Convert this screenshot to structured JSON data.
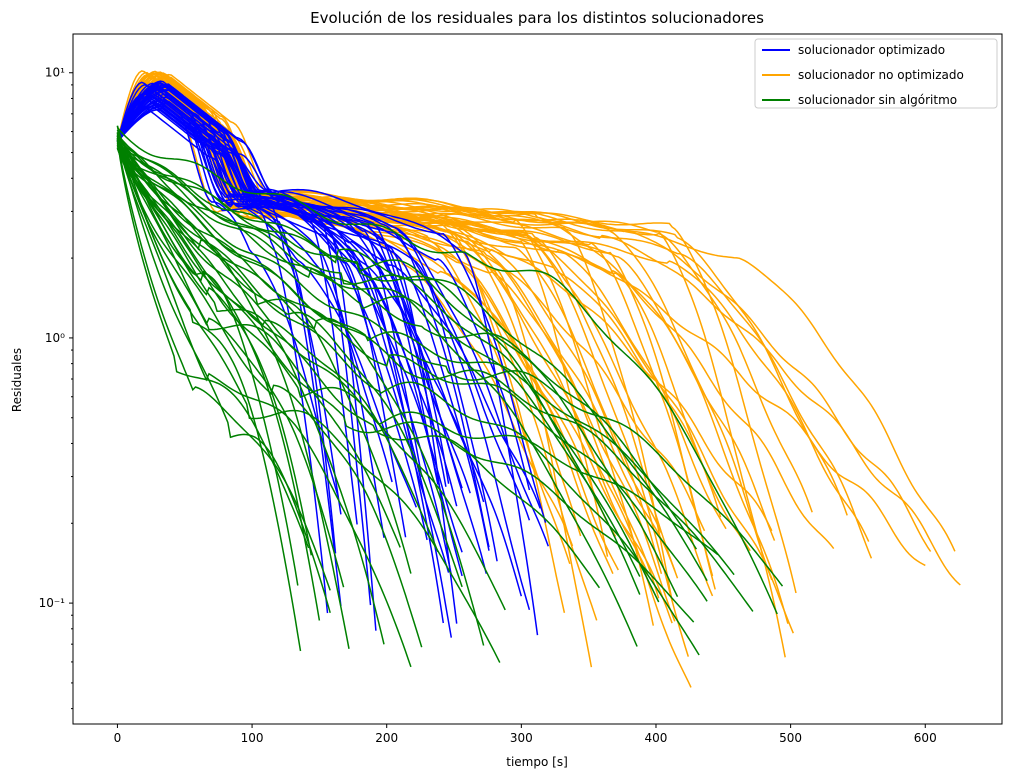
{
  "chart_data": {
    "type": "line",
    "title": "Evolución de los residuales para los distintos solucionadores",
    "xlabel": "tiempo [s]",
    "ylabel": "Residuales",
    "xlim": [
      -33,
      657
    ],
    "ylim": [
      0.035,
      14
    ],
    "yscale": "log",
    "x_ticks": [
      0,
      100,
      200,
      300,
      400,
      500,
      600
    ],
    "x_tick_labels": [
      "0",
      "100",
      "200",
      "300",
      "400",
      "500",
      "600"
    ],
    "y_ticks": [
      0.1,
      1,
      10
    ],
    "y_tick_labels": [
      "10⁻¹",
      "10⁰",
      "10¹"
    ],
    "grid": false,
    "legend_position": "top-right",
    "series": [
      {
        "name": "solucionador optimizado",
        "color": "#0000ff",
        "curve_count": 40,
        "peak": [
          7.2,
          9.4
        ],
        "plateau": [
          3.1,
          3.6
        ],
        "end_time": [
          155,
          325
        ],
        "end_value": [
          0.067,
          0.27
        ]
      },
      {
        "name": "solucionador no optimizado",
        "color": "#ffa500",
        "curve_count": 45,
        "peak": [
          8.5,
          10.2
        ],
        "plateau": [
          2.9,
          3.5
        ],
        "end_time": [
          330,
          628
        ],
        "end_value": [
          0.044,
          0.2
        ]
      },
      {
        "name": "solucionador sin algóritmo",
        "color": "#008000",
        "curve_count": 35,
        "start": [
          5.3,
          6.1
        ],
        "end_time": [
          131,
          515
        ],
        "end_value": [
          0.057,
          0.16
        ]
      }
    ]
  }
}
